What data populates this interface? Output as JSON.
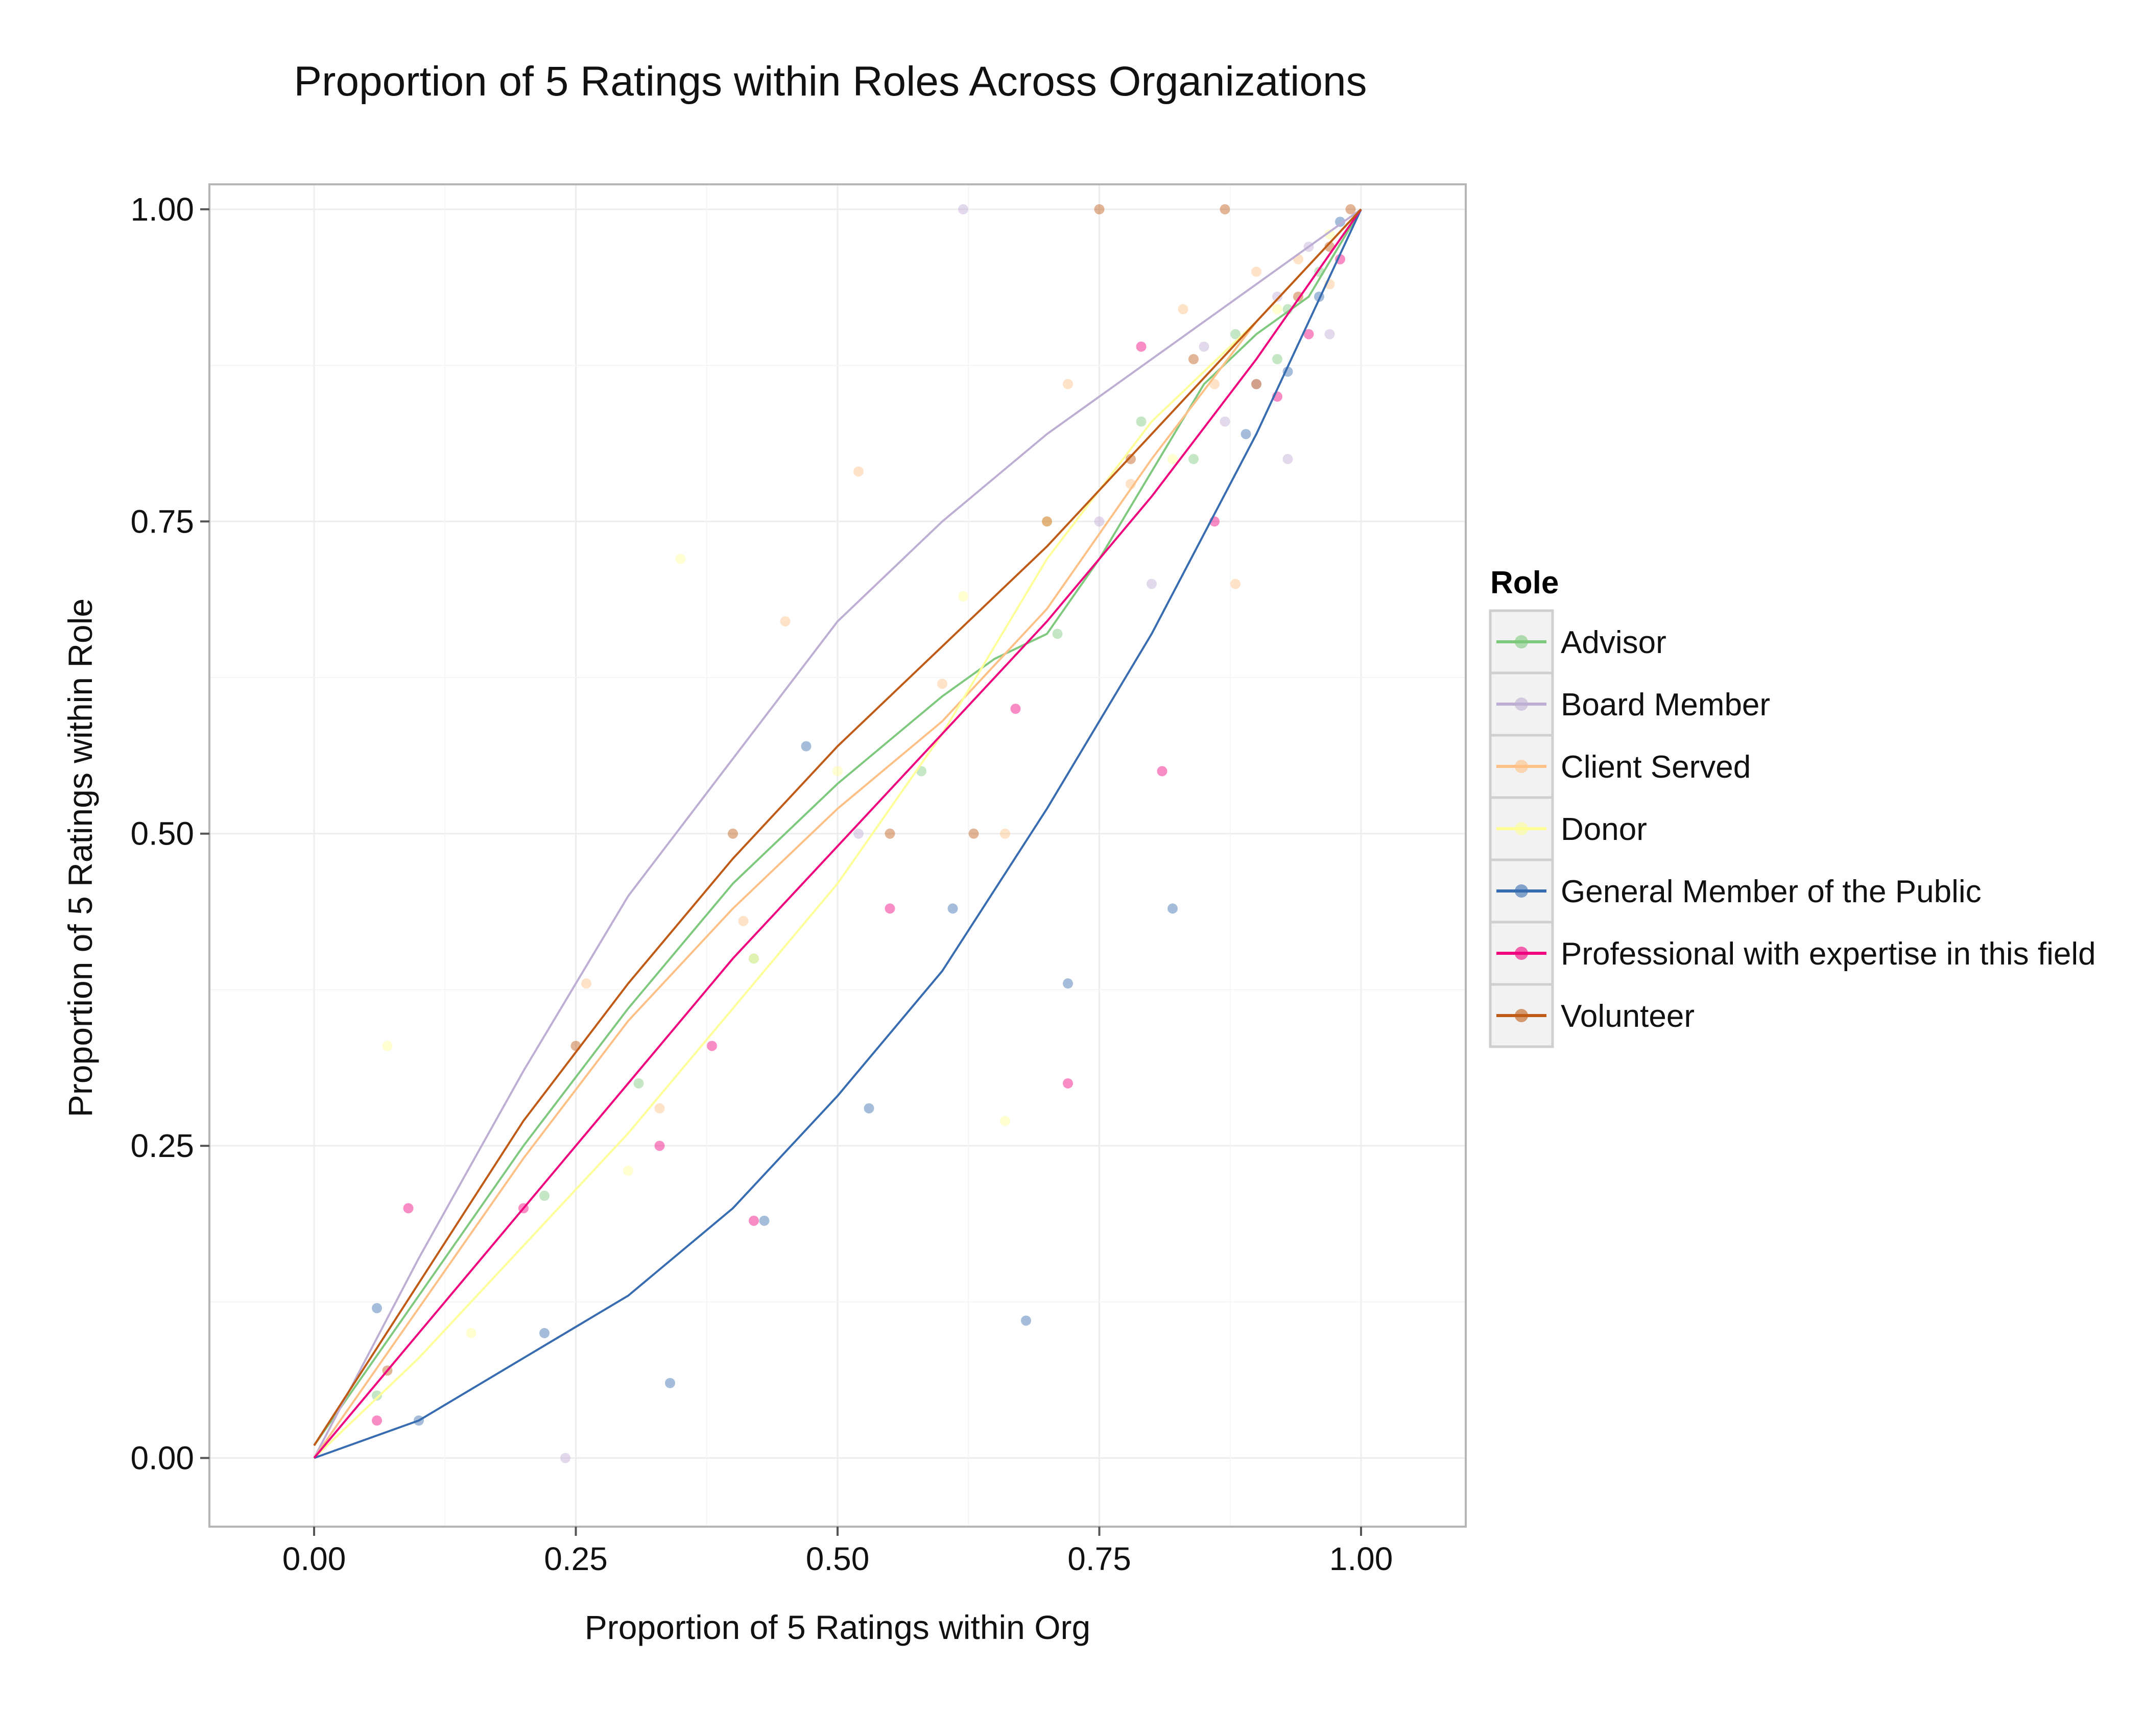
{
  "chart_data": {
    "type": "scatter",
    "title": "Proportion of 5 Ratings within Roles Across Organizations",
    "xlabel": "Proportion of 5 Ratings within Org",
    "ylabel": "Proportion of 5 Ratings within Role",
    "xlim": [
      -0.1,
      1.1
    ],
    "ylim": [
      -0.055,
      1.02
    ],
    "xticks": [
      "0.00",
      "0.25",
      "0.50",
      "0.75",
      "1.00"
    ],
    "yticks": [
      "0.00",
      "0.25",
      "0.50",
      "0.75",
      "1.00"
    ],
    "grid": true,
    "legend": {
      "title": "Role",
      "position": "right"
    },
    "series": [
      {
        "name": "Advisor",
        "color": "#7fc97f",
        "curve": [
          [
            0,
            0.01
          ],
          [
            0.1,
            0.13
          ],
          [
            0.2,
            0.25
          ],
          [
            0.3,
            0.36
          ],
          [
            0.4,
            0.46
          ],
          [
            0.5,
            0.54
          ],
          [
            0.6,
            0.61
          ],
          [
            0.65,
            0.64
          ],
          [
            0.7,
            0.66
          ],
          [
            0.75,
            0.72
          ],
          [
            0.8,
            0.79
          ],
          [
            0.85,
            0.86
          ],
          [
            0.9,
            0.9
          ],
          [
            0.95,
            0.93
          ],
          [
            1,
            1
          ]
        ],
        "points": [
          [
            0.06,
            0.05
          ],
          [
            0.22,
            0.21
          ],
          [
            0.31,
            0.3
          ],
          [
            0.42,
            0.4
          ],
          [
            0.58,
            0.55
          ],
          [
            0.71,
            0.66
          ],
          [
            0.84,
            0.8
          ],
          [
            0.88,
            0.9
          ],
          [
            0.93,
            0.92
          ],
          [
            0.96,
            0.95
          ],
          [
            0.79,
            0.83
          ],
          [
            0.92,
            0.88
          ]
        ]
      },
      {
        "name": "Board Member",
        "color": "#beaed4",
        "curve": [
          [
            0,
            0
          ],
          [
            0.1,
            0.16
          ],
          [
            0.2,
            0.31
          ],
          [
            0.3,
            0.45
          ],
          [
            0.4,
            0.56
          ],
          [
            0.5,
            0.67
          ],
          [
            0.6,
            0.75
          ],
          [
            0.7,
            0.82
          ],
          [
            0.8,
            0.88
          ],
          [
            0.9,
            0.94
          ],
          [
            1,
            1
          ]
        ],
        "points": [
          [
            0.24,
            0.0
          ],
          [
            0.52,
            0.5
          ],
          [
            0.75,
            0.75
          ],
          [
            0.85,
            0.89
          ],
          [
            0.9,
            0.86
          ],
          [
            0.95,
            0.97
          ],
          [
            0.92,
            0.93
          ],
          [
            0.87,
            0.83
          ],
          [
            0.97,
            0.9
          ],
          [
            0.62,
            1.0
          ],
          [
            0.8,
            0.7
          ],
          [
            0.93,
            0.8
          ]
        ]
      },
      {
        "name": "Client Served",
        "color": "#fdc086",
        "curve": [
          [
            0,
            0
          ],
          [
            0.1,
            0.12
          ],
          [
            0.2,
            0.24
          ],
          [
            0.3,
            0.35
          ],
          [
            0.4,
            0.44
          ],
          [
            0.5,
            0.52
          ],
          [
            0.6,
            0.59
          ],
          [
            0.7,
            0.68
          ],
          [
            0.8,
            0.8
          ],
          [
            0.9,
            0.91
          ],
          [
            1,
            1
          ]
        ],
        "points": [
          [
            0.26,
            0.38
          ],
          [
            0.33,
            0.28
          ],
          [
            0.41,
            0.43
          ],
          [
            0.52,
            0.79
          ],
          [
            0.6,
            0.62
          ],
          [
            0.72,
            0.86
          ],
          [
            0.78,
            0.78
          ],
          [
            0.86,
            0.86
          ],
          [
            0.9,
            0.95
          ],
          [
            0.94,
            0.96
          ],
          [
            0.97,
            0.94
          ],
          [
            0.83,
            0.92
          ],
          [
            0.45,
            0.67
          ],
          [
            0.66,
            0.5
          ],
          [
            0.88,
            0.7
          ]
        ]
      },
      {
        "name": "Donor",
        "color": "#ffff99",
        "curve": [
          [
            0,
            0
          ],
          [
            0.1,
            0.08
          ],
          [
            0.2,
            0.17
          ],
          [
            0.3,
            0.26
          ],
          [
            0.4,
            0.36
          ],
          [
            0.5,
            0.46
          ],
          [
            0.6,
            0.58
          ],
          [
            0.7,
            0.72
          ],
          [
            0.8,
            0.83
          ],
          [
            0.9,
            0.91
          ],
          [
            1,
            1
          ]
        ],
        "points": [
          [
            0.15,
            0.1
          ],
          [
            0.3,
            0.23
          ],
          [
            0.42,
            0.4
          ],
          [
            0.5,
            0.55
          ],
          [
            0.62,
            0.69
          ],
          [
            0.7,
            0.75
          ],
          [
            0.82,
            0.8
          ],
          [
            0.92,
            0.92
          ],
          [
            0.97,
            0.98
          ],
          [
            0.35,
            0.72
          ],
          [
            0.66,
            0.27
          ],
          [
            0.07,
            0.33
          ]
        ]
      },
      {
        "name": "General Member of the Public",
        "color": "#386cb0",
        "curve": [
          [
            0,
            0
          ],
          [
            0.1,
            0.03
          ],
          [
            0.2,
            0.08
          ],
          [
            0.3,
            0.13
          ],
          [
            0.4,
            0.2
          ],
          [
            0.5,
            0.29
          ],
          [
            0.6,
            0.39
          ],
          [
            0.7,
            0.52
          ],
          [
            0.8,
            0.66
          ],
          [
            0.9,
            0.82
          ],
          [
            1,
            1
          ]
        ],
        "points": [
          [
            0.06,
            0.12
          ],
          [
            0.1,
            0.03
          ],
          [
            0.22,
            0.1
          ],
          [
            0.34,
            0.06
          ],
          [
            0.47,
            0.57
          ],
          [
            0.53,
            0.28
          ],
          [
            0.61,
            0.44
          ],
          [
            0.68,
            0.11
          ],
          [
            0.72,
            0.38
          ],
          [
            0.82,
            0.44
          ],
          [
            0.89,
            0.82
          ],
          [
            0.93,
            0.87
          ],
          [
            0.96,
            0.93
          ],
          [
            0.98,
            0.99
          ],
          [
            0.43,
            0.19
          ]
        ]
      },
      {
        "name": "Professional with expertise in this field",
        "color": "#f0027f",
        "curve": [
          [
            0,
            0
          ],
          [
            0.1,
            0.1
          ],
          [
            0.2,
            0.2
          ],
          [
            0.3,
            0.3
          ],
          [
            0.4,
            0.4
          ],
          [
            0.5,
            0.49
          ],
          [
            0.6,
            0.58
          ],
          [
            0.7,
            0.67
          ],
          [
            0.8,
            0.77
          ],
          [
            0.9,
            0.88
          ],
          [
            1,
            1
          ]
        ],
        "points": [
          [
            0.06,
            0.03
          ],
          [
            0.09,
            0.2
          ],
          [
            0.2,
            0.2
          ],
          [
            0.33,
            0.25
          ],
          [
            0.42,
            0.19
          ],
          [
            0.55,
            0.44
          ],
          [
            0.67,
            0.6
          ],
          [
            0.72,
            0.3
          ],
          [
            0.79,
            0.89
          ],
          [
            0.86,
            0.75
          ],
          [
            0.92,
            0.85
          ],
          [
            0.95,
            0.9
          ],
          [
            0.98,
            0.96
          ],
          [
            0.38,
            0.33
          ],
          [
            0.81,
            0.55
          ]
        ]
      },
      {
        "name": "Volunteer",
        "color": "#bf5b17",
        "curve": [
          [
            0,
            0.01
          ],
          [
            0.1,
            0.14
          ],
          [
            0.2,
            0.27
          ],
          [
            0.3,
            0.38
          ],
          [
            0.4,
            0.48
          ],
          [
            0.5,
            0.57
          ],
          [
            0.6,
            0.65
          ],
          [
            0.7,
            0.73
          ],
          [
            0.8,
            0.82
          ],
          [
            0.9,
            0.91
          ],
          [
            1,
            1
          ]
        ],
        "points": [
          [
            0.07,
            0.07
          ],
          [
            0.25,
            0.33
          ],
          [
            0.4,
            0.5
          ],
          [
            0.55,
            0.5
          ],
          [
            0.63,
            0.5
          ],
          [
            0.7,
            0.75
          ],
          [
            0.78,
            0.8
          ],
          [
            0.84,
            0.88
          ],
          [
            0.9,
            0.86
          ],
          [
            0.94,
            0.93
          ],
          [
            0.97,
            0.97
          ],
          [
            0.99,
            1.0
          ],
          [
            0.87,
            1.0
          ],
          [
            0.75,
            1.0
          ]
        ]
      }
    ]
  }
}
